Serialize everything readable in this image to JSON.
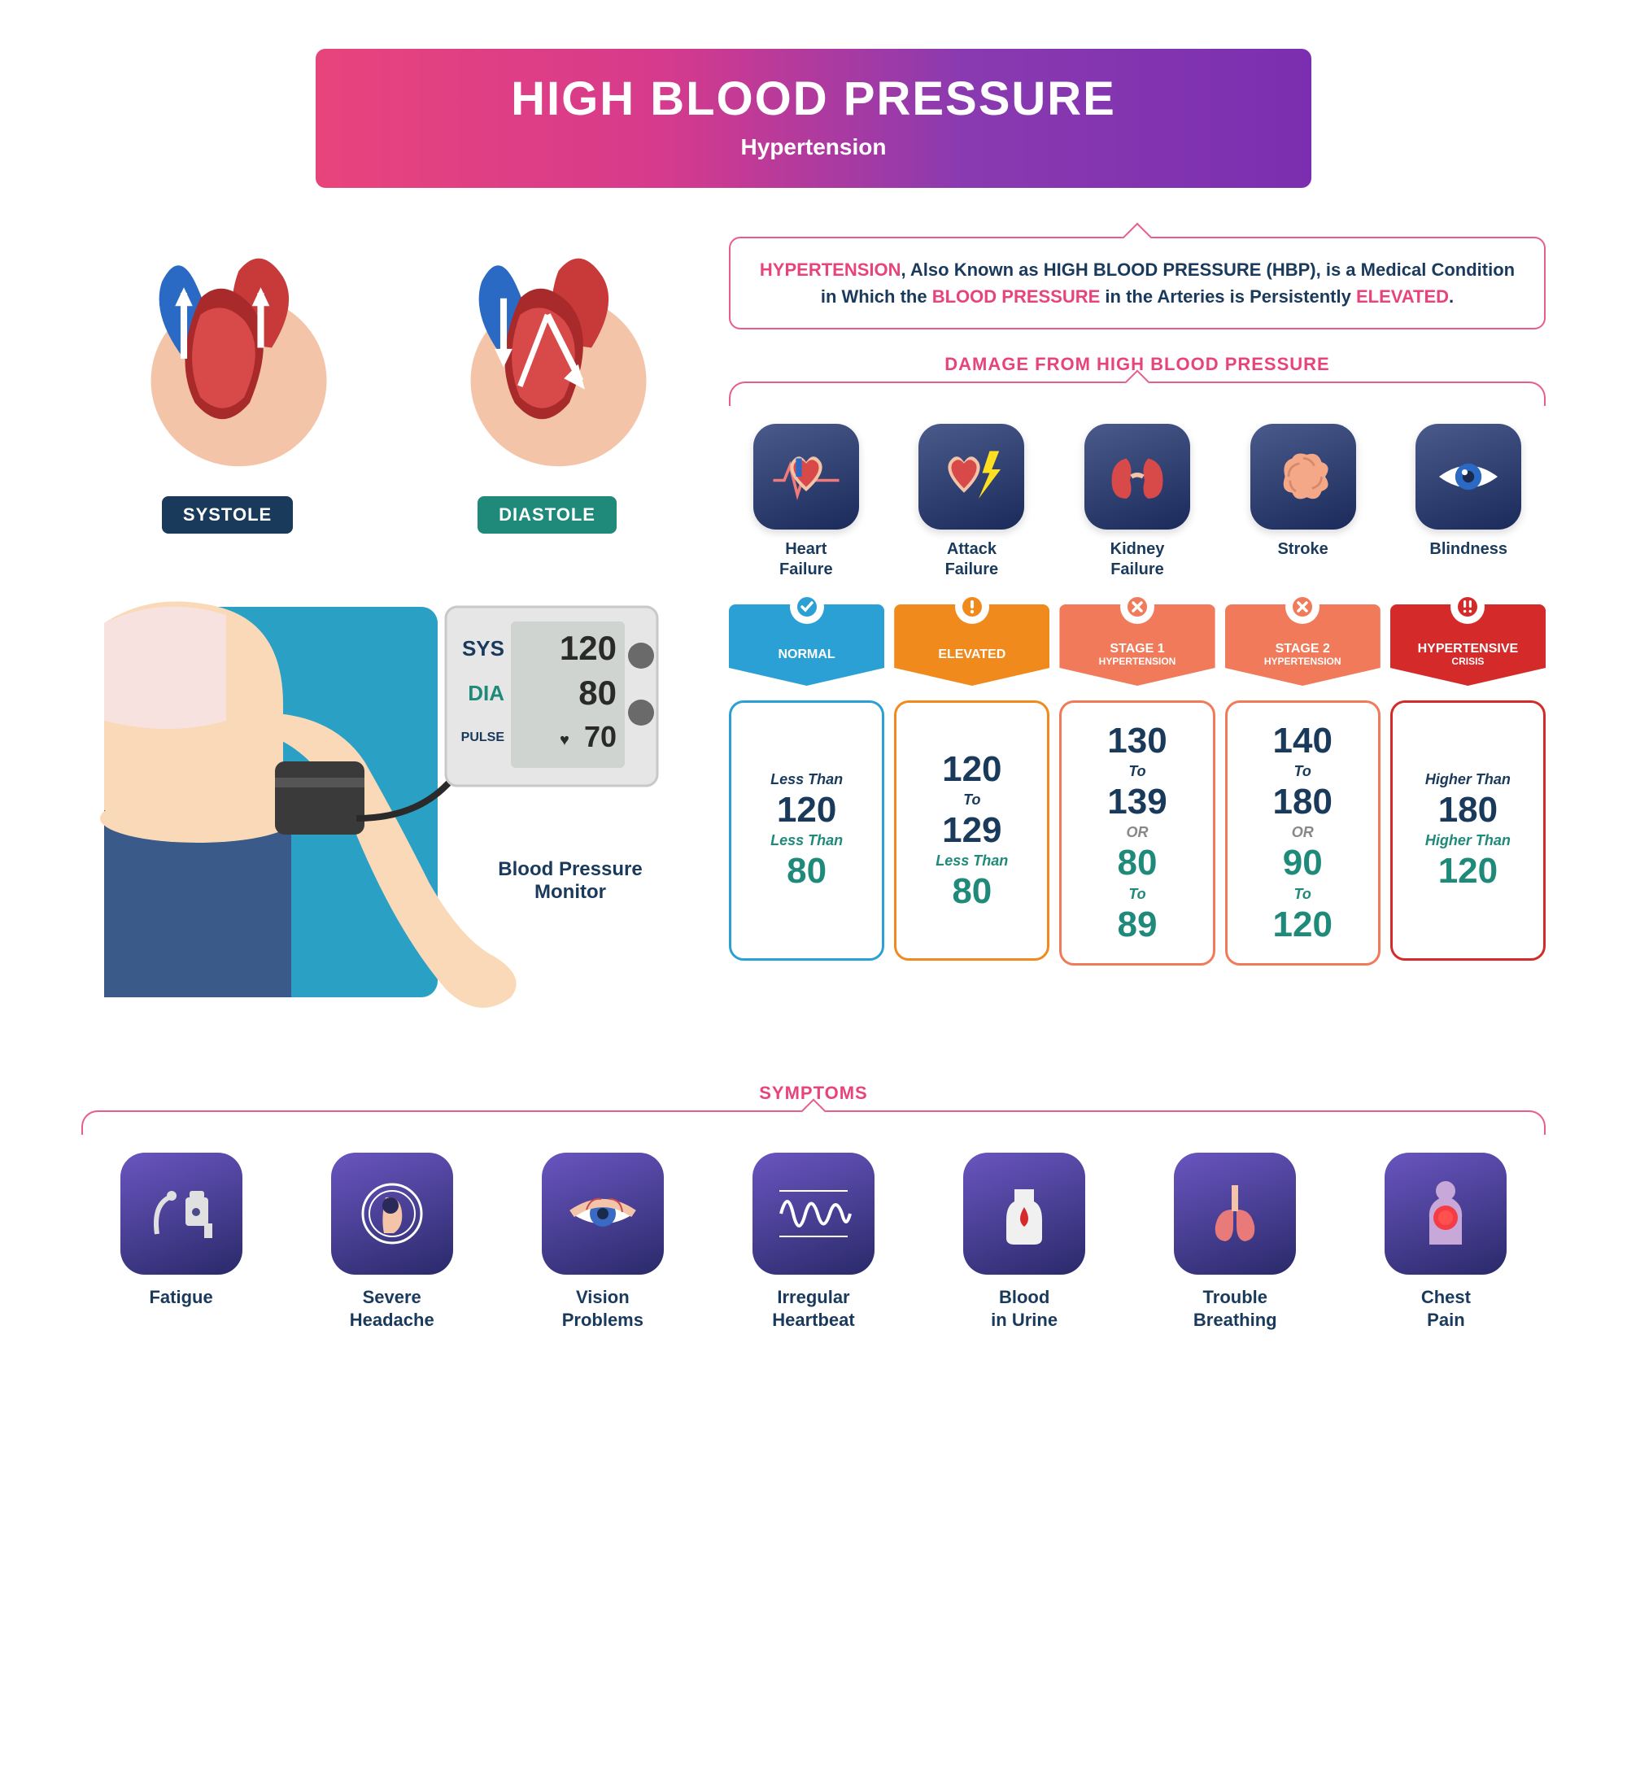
{
  "header": {
    "title": "HIGH BLOOD PRESSURE",
    "subtitle": "Hypertension",
    "gradient_start": "#e8447c",
    "gradient_end": "#7b2fb0"
  },
  "hearts": {
    "systole": {
      "label": "SYSTOLE",
      "label_bg": "#1a3a5c"
    },
    "diastole": {
      "label": "DIASTOLE",
      "label_bg": "#1f8a7a"
    },
    "body_color": "#f4c4a8",
    "red": "#c83a3a",
    "blue": "#2a6ac4"
  },
  "monitor": {
    "caption": "Blood Pressure Monitor",
    "sys_label": "SYS",
    "sys_val": "120",
    "sys_color": "#1a3a5c",
    "dia_label": "DIA",
    "dia_val": "80",
    "dia_color": "#1f8a7a",
    "pulse_label": "PULSE",
    "pulse_val": "70",
    "skin": "#f9d9b8",
    "bg_panel": "#2aa0c4",
    "pants": "#3a5a8a",
    "shirt": "#f8e2e0",
    "device_body": "#e6e6e6",
    "screen": "#cfd4d0",
    "cuff": "#3a3a3a"
  },
  "callout": {
    "p1a": "HYPERTENSION",
    "p1b": ", Also Known as HIGH BLOOD PRESSURE (HBP), is a Medical Condition in Which the ",
    "p1c": "BLOOD PRESSURE",
    "p1d": " in the Arteries is Persistently ",
    "p1e": "ELEVATED",
    "p1f": ".",
    "border_color": "#e95d8c"
  },
  "damage": {
    "heading": "DAMAGE FROM HIGH BLOOD PRESSURE",
    "items": [
      {
        "name": "heart-failure-icon",
        "label": "Heart Failure"
      },
      {
        "name": "attack-failure-icon",
        "label": "Attack Failure"
      },
      {
        "name": "kidney-failure-icon",
        "label": "Kidney Failure"
      },
      {
        "name": "stroke-icon",
        "label": "Stroke"
      },
      {
        "name": "blindness-icon",
        "label": "Blindness"
      }
    ]
  },
  "stages": [
    {
      "name": "NORMAL",
      "color": "#2aa0d4",
      "badge": "check",
      "sys_pre": "Less Than",
      "sys_main": "120",
      "dia_pre": "Less Than",
      "dia_main": "80"
    },
    {
      "name": "ELEVATED",
      "color": "#f08a1c",
      "badge": "exclaim",
      "sys_main": "120",
      "sys_link": "To",
      "sys_main2": "129",
      "dia_pre": "Less Than",
      "dia_main": "80"
    },
    {
      "name": "STAGE 1",
      "sub": "HYPERTENSION",
      "color": "#f07a5a",
      "badge": "x",
      "sys_main": "130",
      "sys_link": "To",
      "sys_main2": "139",
      "mid_link": "OR",
      "dia_main": "80",
      "dia_link": "To",
      "dia_main2": "89"
    },
    {
      "name": "STAGE 2",
      "sub": "HYPERTENSION",
      "color": "#f07a5a",
      "badge": "x",
      "sys_main": "140",
      "sys_link": "To",
      "sys_main2": "180",
      "mid_link": "OR",
      "dia_main": "90",
      "dia_link": "To",
      "dia_main2": "120"
    },
    {
      "name": "HYPERTENSIVE",
      "sub": "CRISIS",
      "color": "#d42a2a",
      "badge": "double-exclaim",
      "sys_pre": "Higher Than",
      "sys_main": "180",
      "dia_pre": "Higher Than",
      "dia_main": "120"
    }
  ],
  "symptoms": {
    "heading": "SYMPTOMS",
    "items": [
      {
        "name": "fatigue-icon",
        "label": "Fatigue"
      },
      {
        "name": "severe-headache-icon",
        "label": "Severe Headache"
      },
      {
        "name": "vision-problems-icon",
        "label": "Vision Problems"
      },
      {
        "name": "irregular-heartbeat-icon",
        "label": "Irregular Heartbeat"
      },
      {
        "name": "blood-in-urine-icon",
        "label": "Blood in Urine"
      },
      {
        "name": "trouble-breathing-icon",
        "label": "Trouble Breathing"
      },
      {
        "name": "chest-pain-icon",
        "label": "Chest Pain"
      }
    ]
  },
  "palette": {
    "pink": "#e8447c",
    "navy": "#1a3a5c",
    "teal": "#1f8a7a"
  }
}
